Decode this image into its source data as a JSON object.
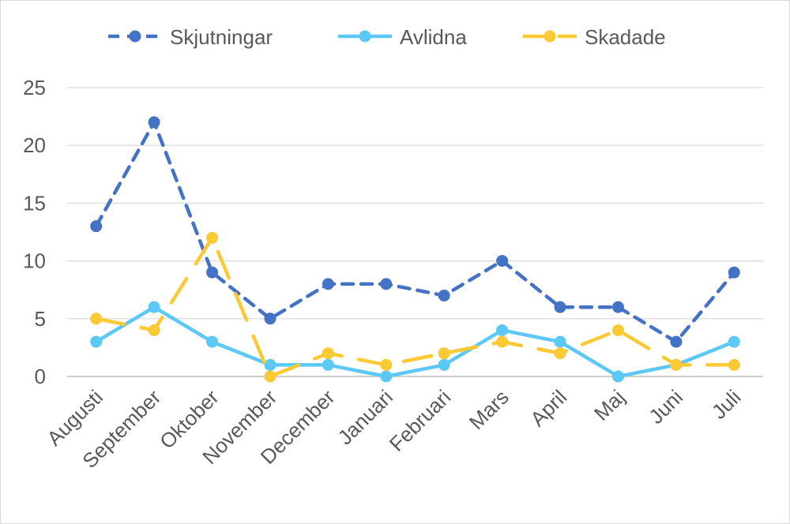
{
  "chart_data": {
    "type": "line",
    "title": "",
    "xlabel": "",
    "ylabel": "",
    "categories": [
      "Augusti",
      "September",
      "Oktober",
      "November",
      "December",
      "Januari",
      "Februari",
      "Mars",
      "April",
      "Maj",
      "Juni",
      "Juli"
    ],
    "ylim": [
      0,
      25
    ],
    "yticks": [
      0,
      5,
      10,
      15,
      20,
      25
    ],
    "grid": true,
    "legend_position": "top",
    "series": [
      {
        "name": "Skjutningar",
        "values": [
          13,
          22,
          9,
          5,
          8,
          8,
          7,
          10,
          6,
          6,
          3,
          9
        ],
        "color": "#4472c4",
        "line_style": "dashed"
      },
      {
        "name": "Avlidna",
        "values": [
          3,
          6,
          3,
          1,
          1,
          0,
          1,
          4,
          3,
          0,
          1,
          3
        ],
        "color": "#5bc8f5",
        "line_style": "solid"
      },
      {
        "name": "Skadade",
        "values": [
          5,
          4,
          12,
          0,
          2,
          1,
          2,
          3,
          2,
          4,
          1,
          1
        ],
        "color": "#fbc934",
        "line_style": "long-dash"
      }
    ]
  }
}
